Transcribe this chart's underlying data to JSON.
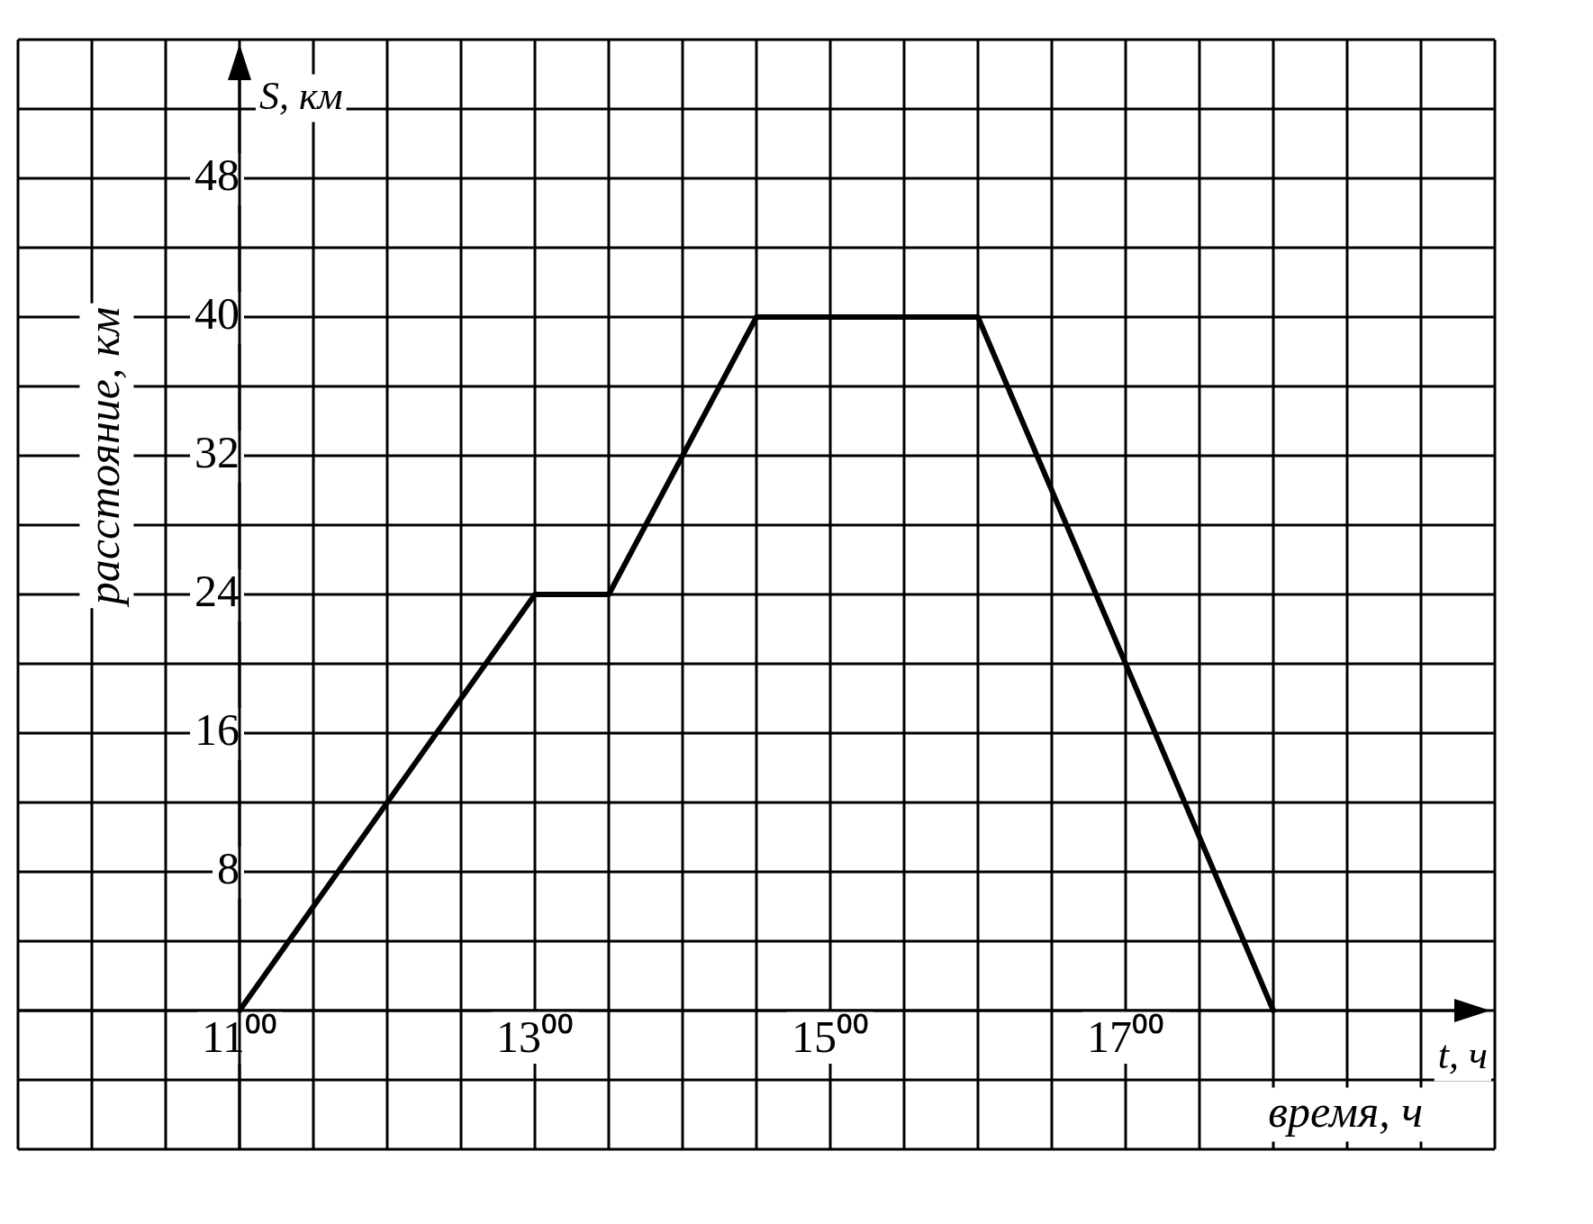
{
  "chart_data": {
    "type": "line",
    "xlabel": "время, ч",
    "ylabel": "расстояние, км",
    "annotations": [
      "S, км",
      "t, ч"
    ],
    "x": [
      11,
      13,
      13.5,
      14.5,
      16,
      18
    ],
    "series": [
      {
        "color": "#000000",
        "values": [
          0,
          24,
          24,
          40,
          40,
          0
        ]
      }
    ],
    "xlim": [
      9.5,
      19.5
    ],
    "xticks": [
      {
        "value": 9.5,
        "label": null
      },
      {
        "value": 10,
        "label": null
      },
      {
        "value": 10.5,
        "label": null
      },
      {
        "value": 11,
        "label": "11⁰⁰"
      },
      {
        "value": 11.5,
        "label": null
      },
      {
        "value": 12,
        "label": null
      },
      {
        "value": 12.5,
        "label": null
      },
      {
        "value": 13,
        "label": "13⁰⁰"
      },
      {
        "value": 13.5,
        "label": null
      },
      {
        "value": 14,
        "label": null
      },
      {
        "value": 14.5,
        "label": null
      },
      {
        "value": 15,
        "label": "15⁰⁰"
      },
      {
        "value": 15.5,
        "label": null
      },
      {
        "value": 16,
        "label": null
      },
      {
        "value": 16.5,
        "label": null
      },
      {
        "value": 17,
        "label": "17⁰⁰"
      },
      {
        "value": 17.5,
        "label": null
      },
      {
        "value": 18,
        "label": null
      },
      {
        "value": 18.5,
        "label": null
      },
      {
        "value": 19,
        "label": null
      },
      {
        "value": 19.5,
        "label": null
      }
    ],
    "ylim": [
      -8,
      56
    ],
    "yticks": [
      {
        "value": -8,
        "label": null
      },
      {
        "value": -4,
        "label": null
      },
      {
        "value": 0,
        "label": null
      },
      {
        "value": 4,
        "label": null
      },
      8,
      {
        "value": 12,
        "label": null
      },
      16,
      {
        "value": 20,
        "label": null
      },
      24,
      {
        "value": 28,
        "label": null
      },
      32,
      {
        "value": 36,
        "label": null
      },
      40,
      {
        "value": 44,
        "label": null
      },
      48,
      {
        "value": 52,
        "label": null
      },
      {
        "value": 56,
        "label": null
      }
    ],
    "grid": true,
    "legend": false,
    "marker": "none",
    "line_style": "solid"
  }
}
